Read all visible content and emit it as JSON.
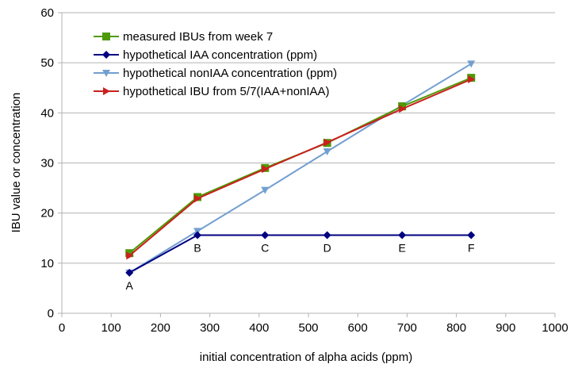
{
  "chart_data": {
    "type": "line",
    "title": "",
    "xlabel": "initial concentration of alpha acids (ppm)",
    "ylabel": "IBU value or concentration",
    "xlim": [
      0,
      1000
    ],
    "ylim": [
      0,
      60
    ],
    "xticks": [
      0,
      100,
      200,
      300,
      400,
      500,
      600,
      700,
      800,
      900,
      1000
    ],
    "yticks": [
      0,
      10,
      20,
      30,
      40,
      50,
      60
    ],
    "grid": "horizontal",
    "legend_position": "top-left",
    "point_labels": [
      "A",
      "B",
      "C",
      "D",
      "E",
      "F"
    ],
    "x": [
      137,
      275,
      412,
      538,
      690,
      830
    ],
    "series": [
      {
        "name": "measured IBUs from week 7",
        "color": "#4e9a06",
        "marker": "square",
        "values": [
          12.0,
          23.2,
          29.0,
          34.0,
          41.3,
          47.0
        ]
      },
      {
        "name": "hypothetical IAA concentration (ppm)",
        "color": "#000080",
        "marker": "diamond",
        "values": [
          8.1,
          15.6,
          15.6,
          15.6,
          15.6,
          15.6
        ]
      },
      {
        "name": "hypothetical nonIAA concentration (ppm)",
        "color": "#729fcf",
        "marker": "triangle-down",
        "values": [
          8.1,
          16.4,
          24.6,
          32.3,
          41.5,
          49.8
        ]
      },
      {
        "name": "hypothetical IBU from 5/7(IAA+nonIAA)",
        "color": "#c9211e",
        "marker": "triangle-right",
        "values": [
          11.5,
          22.9,
          28.8,
          34.1,
          40.8,
          46.7
        ]
      }
    ]
  }
}
